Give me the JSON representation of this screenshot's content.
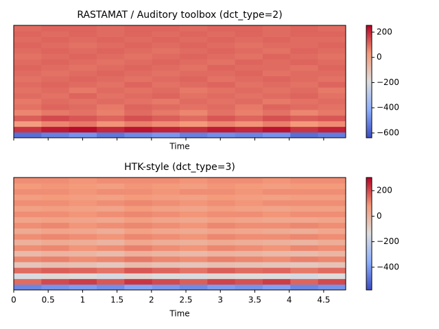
{
  "chart_data": [
    {
      "type": "heatmap",
      "title": "RASTAMAT / Auditory toolbox (dct_type=2)",
      "xlabel": "Time",
      "colormap": "coolwarm",
      "xlim": [
        0,
        4.82
      ],
      "xticks": [
        0,
        0.5,
        1,
        1.5,
        2,
        2.5,
        3,
        3.5,
        4,
        4.5
      ],
      "xtick_labels": false,
      "clim": [
        -638,
        254
      ],
      "cticks": [
        {
          "value": 200,
          "label": "200"
        },
        {
          "value": 0,
          "label": "0"
        },
        {
          "value": -200,
          "label": "−200"
        },
        {
          "value": -400,
          "label": "−400"
        },
        {
          "value": -600,
          "label": "−600"
        }
      ],
      "z": [
        [
          -560,
          -520,
          -480,
          -540,
          -500,
          -470,
          -520,
          -490,
          -510,
          -480,
          -560,
          -530
        ],
        [
          180,
          220,
          240,
          200,
          230,
          210,
          190,
          220,
          200,
          230,
          180,
          210
        ],
        [
          20,
          60,
          80,
          40,
          70,
          50,
          30,
          60,
          40,
          70,
          30,
          50
        ],
        [
          120,
          150,
          130,
          110,
          140,
          120,
          100,
          130,
          110,
          140,
          120,
          130
        ],
        [
          60,
          80,
          90,
          70,
          100,
          80,
          60,
          90,
          70,
          90,
          60,
          80
        ],
        [
          90,
          110,
          100,
          80,
          110,
          100,
          90,
          100,
          80,
          110,
          100,
          90
        ],
        [
          80,
          100,
          90,
          100,
          90,
          80,
          100,
          90,
          100,
          80,
          90,
          100
        ],
        [
          100,
          90,
          110,
          90,
          100,
          110,
          90,
          100,
          90,
          100,
          110,
          90
        ],
        [
          90,
          100,
          80,
          100,
          90,
          100,
          80,
          90,
          100,
          90,
          100,
          80
        ],
        [
          100,
          110,
          100,
          90,
          110,
          90,
          100,
          110,
          90,
          100,
          90,
          110
        ],
        [
          90,
          100,
          110,
          100,
          90,
          100,
          110,
          90,
          100,
          110,
          100,
          90
        ],
        [
          100,
          90,
          100,
          110,
          100,
          90,
          100,
          100,
          110,
          90,
          100,
          100
        ],
        [
          110,
          100,
          90,
          100,
          110,
          100,
          90,
          110,
          100,
          100,
          90,
          110
        ],
        [
          100,
          110,
          100,
          90,
          100,
          110,
          100,
          90,
          110,
          100,
          110,
          100
        ],
        [
          90,
          100,
          110,
          100,
          90,
          100,
          110,
          100,
          90,
          110,
          100,
          90
        ],
        [
          100,
          110,
          100,
          110,
          100,
          90,
          100,
          110,
          100,
          90,
          110,
          100
        ],
        [
          110,
          100,
          90,
          100,
          110,
          100,
          110,
          100,
          90,
          100,
          100,
          110
        ],
        [
          100,
          110,
          100,
          110,
          100,
          110,
          100,
          110,
          100,
          110,
          100,
          100
        ],
        [
          110,
          100,
          110,
          100,
          110,
          100,
          110,
          100,
          110,
          100,
          110,
          110
        ],
        [
          100,
          110,
          110,
          100,
          110,
          110,
          100,
          110,
          110,
          100,
          110,
          100
        ]
      ]
    },
    {
      "type": "heatmap",
      "title": "HTK-style (dct_type=3)",
      "xlabel": "Time",
      "colormap": "coolwarm",
      "xlim": [
        0,
        4.82
      ],
      "xticks": [
        0,
        0.5,
        1,
        1.5,
        2,
        2.5,
        3,
        3.5,
        4,
        4.5
      ],
      "xtick_labels": true,
      "clim": [
        -578,
        303
      ],
      "cticks": [
        {
          "value": 200,
          "label": "200"
        },
        {
          "value": 0,
          "label": "0"
        },
        {
          "value": -200,
          "label": "−200"
        },
        {
          "value": -400,
          "label": "−400"
        }
      ],
      "z": [
        [
          -450,
          -420,
          -400,
          -430,
          -380,
          -410,
          -440,
          -400,
          -420,
          -390,
          -450,
          -420
        ],
        [
          150,
          200,
          220,
          180,
          230,
          200,
          170,
          210,
          190,
          220,
          160,
          200
        ],
        [
          -150,
          -120,
          -130,
          -160,
          -110,
          -140,
          -150,
          -120,
          -130,
          -140,
          -160,
          -130
        ],
        [
          150,
          170,
          160,
          140,
          180,
          160,
          140,
          170,
          150,
          160,
          130,
          150
        ],
        [
          -60,
          -40,
          -50,
          -70,
          -30,
          -50,
          -60,
          -40,
          -50,
          -60,
          -70,
          -50
        ],
        [
          110,
          120,
          100,
          110,
          130,
          110,
          100,
          120,
          110,
          100,
          120,
          110
        ],
        [
          -20,
          0,
          -10,
          -30,
          10,
          -10,
          -20,
          0,
          -10,
          -20,
          -30,
          -10
        ],
        [
          100,
          110,
          90,
          100,
          120,
          100,
          90,
          110,
          100,
          90,
          110,
          100
        ],
        [
          10,
          30,
          20,
          0,
          40,
          20,
          10,
          30,
          20,
          10,
          0,
          20
        ],
        [
          100,
          110,
          100,
          90,
          110,
          100,
          90,
          110,
          100,
          100,
          110,
          100
        ],
        [
          30,
          50,
          40,
          20,
          60,
          40,
          30,
          50,
          40,
          30,
          20,
          40
        ],
        [
          100,
          110,
          90,
          100,
          110,
          100,
          90,
          110,
          100,
          100,
          110,
          100
        ],
        [
          50,
          60,
          50,
          40,
          70,
          50,
          40,
          60,
          50,
          40,
          40,
          50
        ],
        [
          100,
          100,
          90,
          100,
          110,
          100,
          90,
          100,
          100,
          90,
          100,
          100
        ],
        [
          60,
          70,
          60,
          50,
          80,
          60,
          50,
          70,
          60,
          50,
          60,
          60
        ],
        [
          100,
          100,
          90,
          100,
          110,
          100,
          90,
          100,
          90,
          100,
          100,
          100
        ],
        [
          70,
          80,
          70,
          60,
          80,
          70,
          60,
          80,
          70,
          60,
          70,
          70
        ],
        [
          100,
          100,
          90,
          100,
          100,
          90,
          100,
          100,
          90,
          100,
          100,
          100
        ],
        [
          80,
          90,
          80,
          70,
          90,
          80,
          70,
          90,
          80,
          70,
          80,
          80
        ],
        [
          100,
          100,
          90,
          100,
          100,
          100,
          90,
          100,
          100,
          90,
          100,
          100
        ]
      ]
    }
  ]
}
